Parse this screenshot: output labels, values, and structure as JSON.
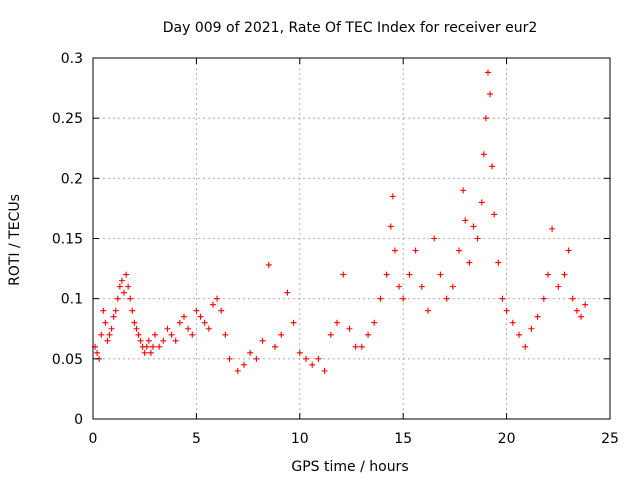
{
  "chart_data": {
    "type": "scatter",
    "title": "Day 009 of 2021, Rate Of TEC Index for receiver eur2",
    "xlabel": "GPS time / hours",
    "ylabel": "ROTI / TECUs",
    "xlim": [
      0,
      25
    ],
    "ylim": [
      0,
      0.3
    ],
    "x_ticks": [
      0,
      5,
      10,
      15,
      20,
      25
    ],
    "y_ticks": [
      0,
      0.05,
      0.1,
      0.15,
      0.2,
      0.25,
      0.3
    ],
    "x_tick_labels": [
      "0",
      "5",
      "10",
      "15",
      "20",
      "25"
    ],
    "y_tick_labels": [
      "0",
      "0.05",
      "0.1",
      "0.15",
      "0.2",
      "0.25",
      "0.3"
    ],
    "grid": true,
    "legend": "none",
    "marker": "plus",
    "color": "#ff0000",
    "series": [
      {
        "x": [
          0.1,
          0.2,
          0.3,
          0.4,
          0.5,
          0.6,
          0.7,
          0.8,
          0.9,
          1.0,
          1.1,
          1.2,
          1.3,
          1.4,
          1.5,
          1.6,
          1.7,
          1.8,
          1.9,
          2.0,
          2.1,
          2.2,
          2.3,
          2.4,
          2.5,
          2.6,
          2.7,
          2.8,
          2.9,
          3.0,
          3.2,
          3.4,
          3.6,
          3.8,
          4.0,
          4.2,
          4.4,
          4.6,
          4.8,
          5.0,
          5.2,
          5.4,
          5.6,
          5.8,
          6.0,
          6.2,
          6.4,
          6.6,
          7.0,
          7.3,
          7.6,
          7.9,
          8.2,
          8.5,
          8.8,
          9.1,
          9.4,
          9.7,
          10.0,
          10.3,
          10.6,
          10.9,
          11.2,
          11.5,
          11.8,
          12.1,
          12.4,
          12.7,
          13.0,
          13.3,
          13.6,
          13.9,
          14.2,
          14.4,
          14.5,
          14.6,
          14.8,
          15.0,
          15.3,
          15.6,
          15.9,
          16.2,
          16.5,
          16.8,
          17.1,
          17.4,
          17.7,
          17.9,
          18.0,
          18.2,
          18.4,
          18.6,
          18.8,
          18.9,
          19.0,
          19.1,
          19.2,
          19.3,
          19.4,
          19.6,
          19.8,
          20.0,
          20.3,
          20.6,
          20.9,
          21.2,
          21.5,
          21.8,
          22.0,
          22.2,
          22.5,
          22.8,
          23.0,
          23.2,
          23.4,
          23.6,
          23.8
        ],
        "y": [
          0.06,
          0.055,
          0.05,
          0.07,
          0.09,
          0.08,
          0.065,
          0.07,
          0.075,
          0.085,
          0.09,
          0.1,
          0.11,
          0.115,
          0.105,
          0.12,
          0.11,
          0.1,
          0.09,
          0.08,
          0.075,
          0.07,
          0.065,
          0.06,
          0.055,
          0.06,
          0.065,
          0.055,
          0.06,
          0.07,
          0.06,
          0.065,
          0.075,
          0.07,
          0.065,
          0.08,
          0.085,
          0.075,
          0.07,
          0.09,
          0.085,
          0.08,
          0.075,
          0.095,
          0.1,
          0.09,
          0.07,
          0.05,
          0.04,
          0.045,
          0.055,
          0.05,
          0.065,
          0.128,
          0.06,
          0.07,
          0.105,
          0.08,
          0.055,
          0.05,
          0.045,
          0.05,
          0.04,
          0.07,
          0.08,
          0.12,
          0.075,
          0.06,
          0.06,
          0.07,
          0.08,
          0.1,
          0.12,
          0.16,
          0.185,
          0.14,
          0.11,
          0.1,
          0.12,
          0.14,
          0.11,
          0.09,
          0.15,
          0.12,
          0.1,
          0.11,
          0.14,
          0.19,
          0.165,
          0.13,
          0.16,
          0.15,
          0.18,
          0.22,
          0.25,
          0.288,
          0.27,
          0.21,
          0.17,
          0.13,
          0.1,
          0.09,
          0.08,
          0.07,
          0.06,
          0.075,
          0.085,
          0.1,
          0.12,
          0.158,
          0.11,
          0.12,
          0.14,
          0.1,
          0.09,
          0.085,
          0.095
        ]
      }
    ]
  }
}
